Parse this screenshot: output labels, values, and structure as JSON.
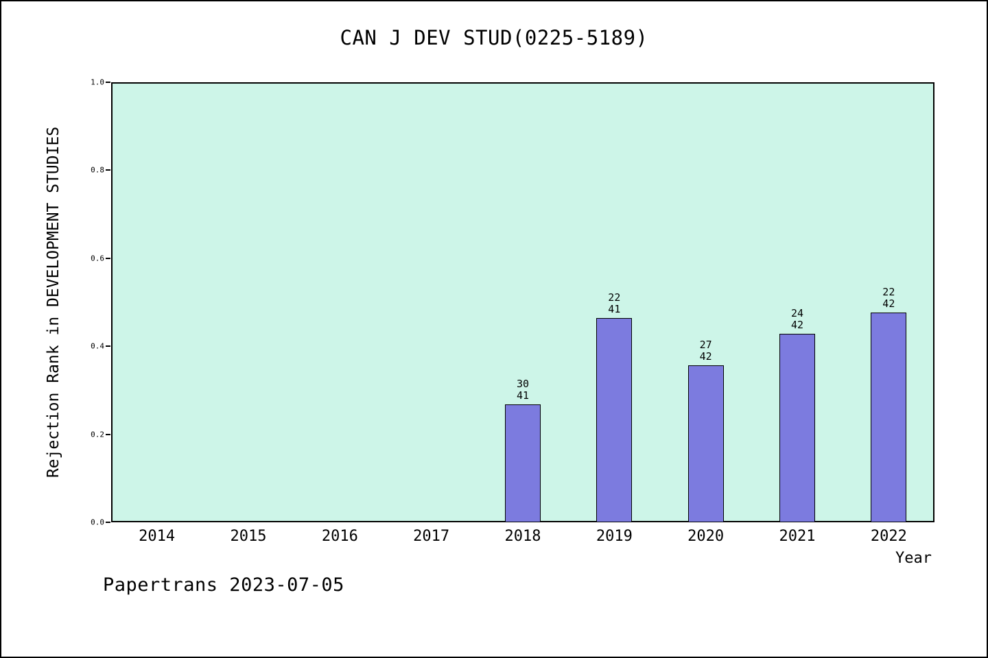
{
  "title": "CAN J DEV STUD(0225-5189)",
  "footer": "Papertrans 2023-07-05",
  "chart_data": {
    "type": "bar",
    "title": "CAN J DEV STUD(0225-5189)",
    "xlabel": "Year",
    "ylabel": "Rejection Rank in DEVELOPMENT STUDIES",
    "categories": [
      "2014",
      "2015",
      "2016",
      "2017",
      "2018",
      "2019",
      "2020",
      "2021",
      "2022"
    ],
    "values": [
      null,
      null,
      null,
      null,
      0.2683,
      0.4634,
      0.3571,
      0.4286,
      0.4762
    ],
    "bar_labels": [
      null,
      null,
      null,
      null,
      [
        "30",
        "41"
      ],
      [
        "22",
        "41"
      ],
      [
        "27",
        "42"
      ],
      [
        "24",
        "42"
      ],
      [
        "22",
        "42"
      ]
    ],
    "yticks": [
      0.0,
      0.2,
      0.4,
      0.6,
      0.8,
      1.0
    ],
    "ytick_labels": [
      "0.0",
      "0.2",
      "0.4",
      "0.6",
      "0.8",
      "1.0"
    ],
    "ylim": [
      0,
      1
    ],
    "grid": false,
    "legend": false,
    "plot_bg": "#cdf5e8",
    "bar_color": "#7c7bdf"
  }
}
